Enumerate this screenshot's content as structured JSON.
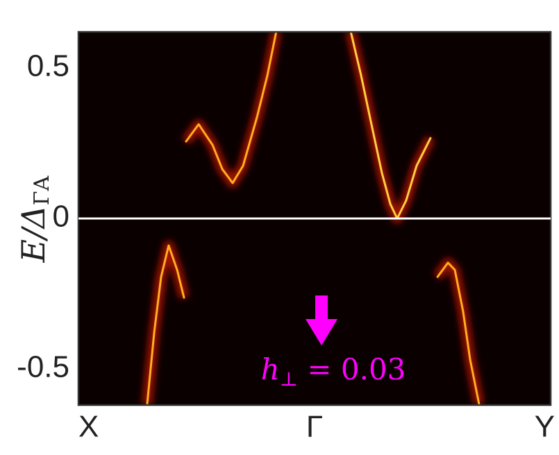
{
  "chart_data": {
    "type": "line",
    "ylabel": [
      "E/Δ",
      "ΓA"
    ],
    "annotation": [
      "h",
      "⊥",
      " = 0.03"
    ],
    "annotation_color": "#ff00ff",
    "background": "#0a0000",
    "reference_line": 0,
    "xlim": [
      0,
      2
    ],
    "ylim": [
      -0.62,
      0.62
    ],
    "xticks": [
      {
        "value": 0,
        "label": "X"
      },
      {
        "value": 1,
        "label": "Γ"
      },
      {
        "value": 2,
        "label": "Y"
      }
    ],
    "yticks": [
      0.5,
      0,
      -0.5
    ],
    "series": [
      {
        "color": "#ffb020",
        "x": [
          0.456,
          0.509,
          0.568,
          0.609,
          0.653,
          0.697,
          0.756,
          0.8,
          0.838
        ],
        "values": [
          0.256,
          0.313,
          0.244,
          0.164,
          0.118,
          0.175,
          0.336,
          0.475,
          0.622
        ]
      },
      {
        "color": "#ffd040",
        "x": [
          1.153,
          1.197,
          1.241,
          1.285,
          1.321,
          1.35,
          1.388,
          1.432,
          1.491
        ],
        "values": [
          0.622,
          0.475,
          0.313,
          0.152,
          0.048,
          0.0,
          0.06,
          0.175,
          0.267
        ]
      },
      {
        "color": "#ffb020",
        "x": [
          0.291,
          0.321,
          0.35,
          0.382,
          0.418,
          0.447
        ],
        "values": [
          -0.618,
          -0.378,
          -0.194,
          -0.09,
          -0.171,
          -0.263
        ]
      },
      {
        "color": "#ffb020",
        "x": [
          1.521,
          1.565,
          1.594,
          1.629,
          1.659,
          1.697
        ],
        "values": [
          -0.194,
          -0.147,
          -0.171,
          -0.309,
          -0.47,
          -0.618
        ]
      }
    ]
  }
}
